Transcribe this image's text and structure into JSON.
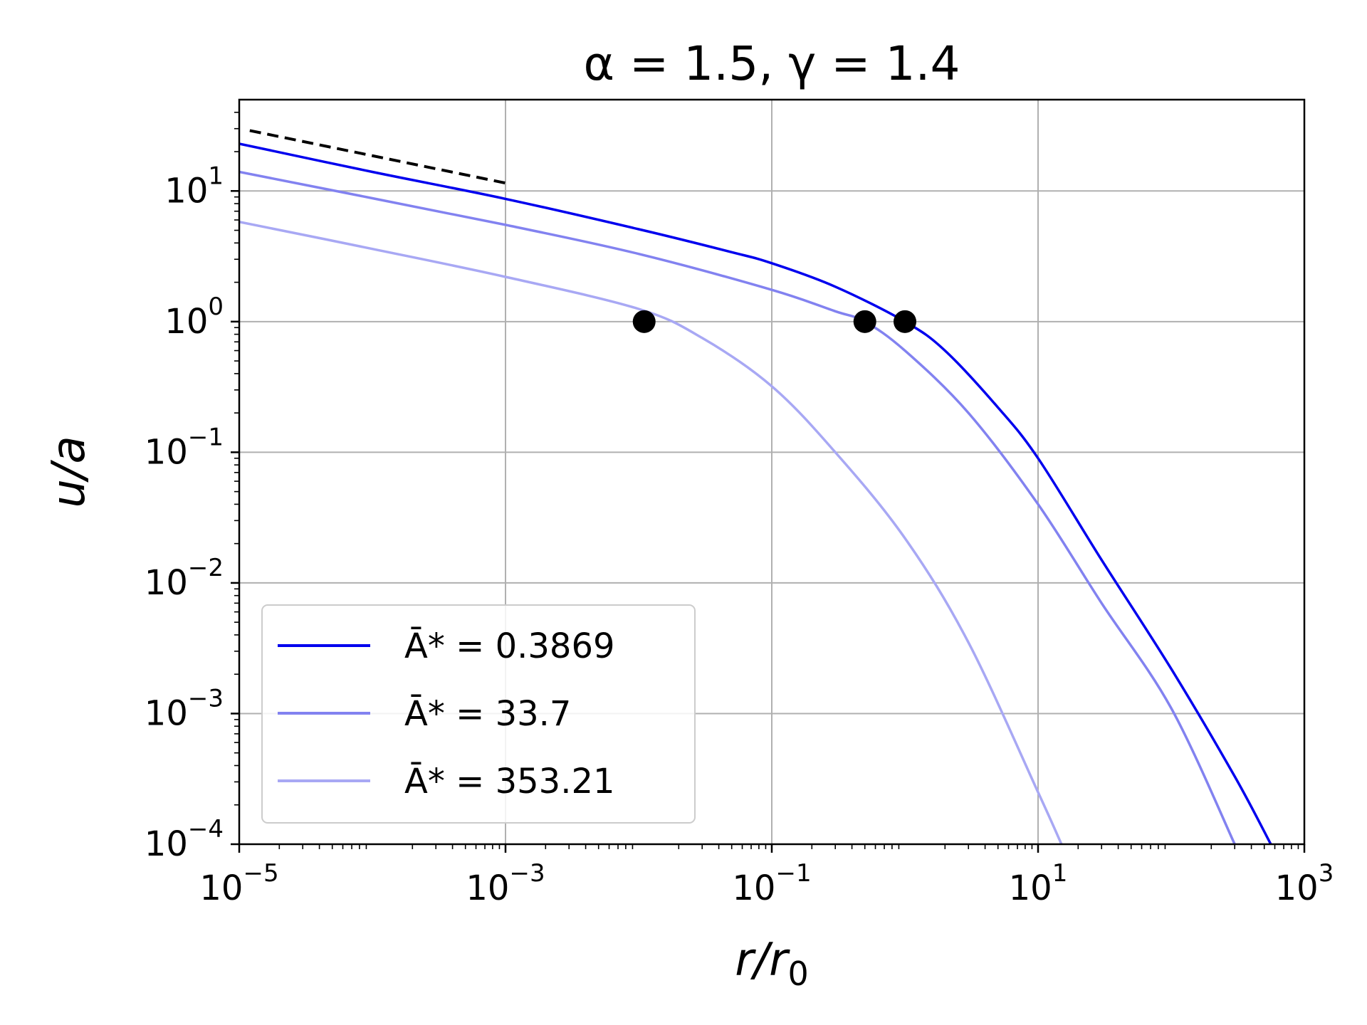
{
  "chart_data": {
    "type": "line",
    "title": "α = 1.5, γ = 1.4",
    "xlabel": "r/r0",
    "ylabel": "u/a",
    "xscale": "log",
    "yscale": "log",
    "xlim": [
      1e-05,
      1000
    ],
    "ylim": [
      0.0001,
      50
    ],
    "grid": true,
    "legend_position": "lower-left",
    "xticks": [
      {
        "value": 1e-05,
        "base": "10",
        "exp": "−5"
      },
      {
        "value": 0.001,
        "base": "10",
        "exp": "−3"
      },
      {
        "value": 0.1,
        "base": "10",
        "exp": "−1"
      },
      {
        "value": 10,
        "base": "10",
        "exp": "1"
      },
      {
        "value": 1000,
        "base": "10",
        "exp": "3"
      }
    ],
    "yticks": [
      {
        "value": 0.0001,
        "base": "10",
        "exp": "−4"
      },
      {
        "value": 0.001,
        "base": "10",
        "exp": "−3"
      },
      {
        "value": 0.01,
        "base": "10",
        "exp": "−2"
      },
      {
        "value": 0.1,
        "base": "10",
        "exp": "−1"
      },
      {
        "value": 1,
        "base": "10",
        "exp": "0"
      },
      {
        "value": 10,
        "base": "10",
        "exp": "1"
      }
    ],
    "series": [
      {
        "name": "Ā* = 0.3869",
        "color": "#0000ee",
        "x": [
          1e-05,
          0.0001,
          0.001,
          0.01,
          0.05,
          0.1,
          0.3,
          1,
          2,
          5,
          10,
          30,
          100,
          300,
          560
        ],
        "y": [
          23,
          14,
          8.7,
          5.1,
          3.4,
          2.8,
          1.85,
          1.0,
          0.6,
          0.22,
          0.09,
          0.015,
          0.0022,
          0.00033,
          0.0001
        ]
      },
      {
        "name": "Ā* = 33.7",
        "color": "#8282f0",
        "x": [
          1e-05,
          0.0001,
          0.001,
          0.01,
          0.1,
          0.3,
          0.5,
          1,
          3,
          10,
          30,
          100,
          300
        ],
        "y": [
          14,
          8.8,
          5.5,
          3.3,
          1.75,
          1.2,
          1.0,
          0.6,
          0.2,
          0.04,
          0.007,
          0.0011,
          0.0001
        ]
      },
      {
        "name": "Ā* = 353.21",
        "color": "#a8a8f4",
        "x": [
          1e-05,
          0.0001,
          0.001,
          0.01,
          0.03,
          0.1,
          0.3,
          1,
          3,
          10,
          15
        ],
        "y": [
          5.8,
          3.6,
          2.2,
          1.25,
          0.75,
          0.32,
          0.1,
          0.022,
          0.0035,
          0.00025,
          0.0001
        ]
      }
    ],
    "reference_line": {
      "style": "dashed",
      "color": "#000000",
      "x": [
        1.2e-05,
        0.001
      ],
      "y": [
        29,
        11.5
      ]
    },
    "markers": {
      "color": "#000000",
      "points": [
        {
          "x": 0.011,
          "y": 1.0
        },
        {
          "x": 0.5,
          "y": 1.0
        },
        {
          "x": 1.0,
          "y": 1.0
        }
      ]
    }
  }
}
